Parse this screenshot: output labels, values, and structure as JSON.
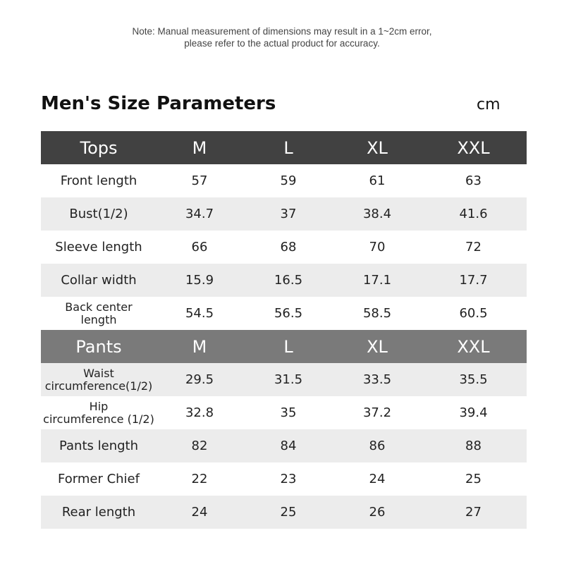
{
  "note": {
    "line1": "Note: Manual measurement of dimensions may result in a 1~2cm error,",
    "line2": "please refer to the actual product for accuracy."
  },
  "title": "Men's Size Parameters",
  "unit": "cm",
  "tops": {
    "header": [
      "Tops",
      "M",
      "L",
      "XL",
      "XXL"
    ],
    "rows": [
      {
        "label": "Front length",
        "values": [
          "57",
          "59",
          "61",
          "63"
        ]
      },
      {
        "label": "Bust(1/2)",
        "values": [
          "34.7",
          "37",
          "38.4",
          "41.6"
        ]
      },
      {
        "label": "Sleeve length",
        "values": [
          "66",
          "68",
          "70",
          "72"
        ]
      },
      {
        "label": "Collar width",
        "values": [
          "15.9",
          "16.5",
          "17.1",
          "17.7"
        ]
      },
      {
        "label": "Back center length",
        "label_lines": [
          "Back center",
          "length"
        ],
        "values": [
          "54.5",
          "56.5",
          "58.5",
          "60.5"
        ]
      }
    ]
  },
  "pants": {
    "header": [
      "Pants",
      "M",
      "L",
      "XL",
      "XXL"
    ],
    "rows": [
      {
        "label": "Waist circumference(1/2)",
        "label_lines": [
          "Waist",
          "circumference(1/2)"
        ],
        "values": [
          "29.5",
          "31.5",
          "33.5",
          "35.5"
        ]
      },
      {
        "label": "Hip circumference (1/2)",
        "label_lines": [
          "Hip",
          "circumference (1/2)"
        ],
        "values": [
          "32.8",
          "35",
          "37.2",
          "39.4"
        ]
      },
      {
        "label": "Pants length",
        "values": [
          "82",
          "84",
          "86",
          "88"
        ]
      },
      {
        "label": "Former Chief",
        "values": [
          "22",
          "23",
          "24",
          "25"
        ]
      },
      {
        "label": "Rear length",
        "values": [
          "24",
          "25",
          "26",
          "27"
        ]
      }
    ]
  }
}
